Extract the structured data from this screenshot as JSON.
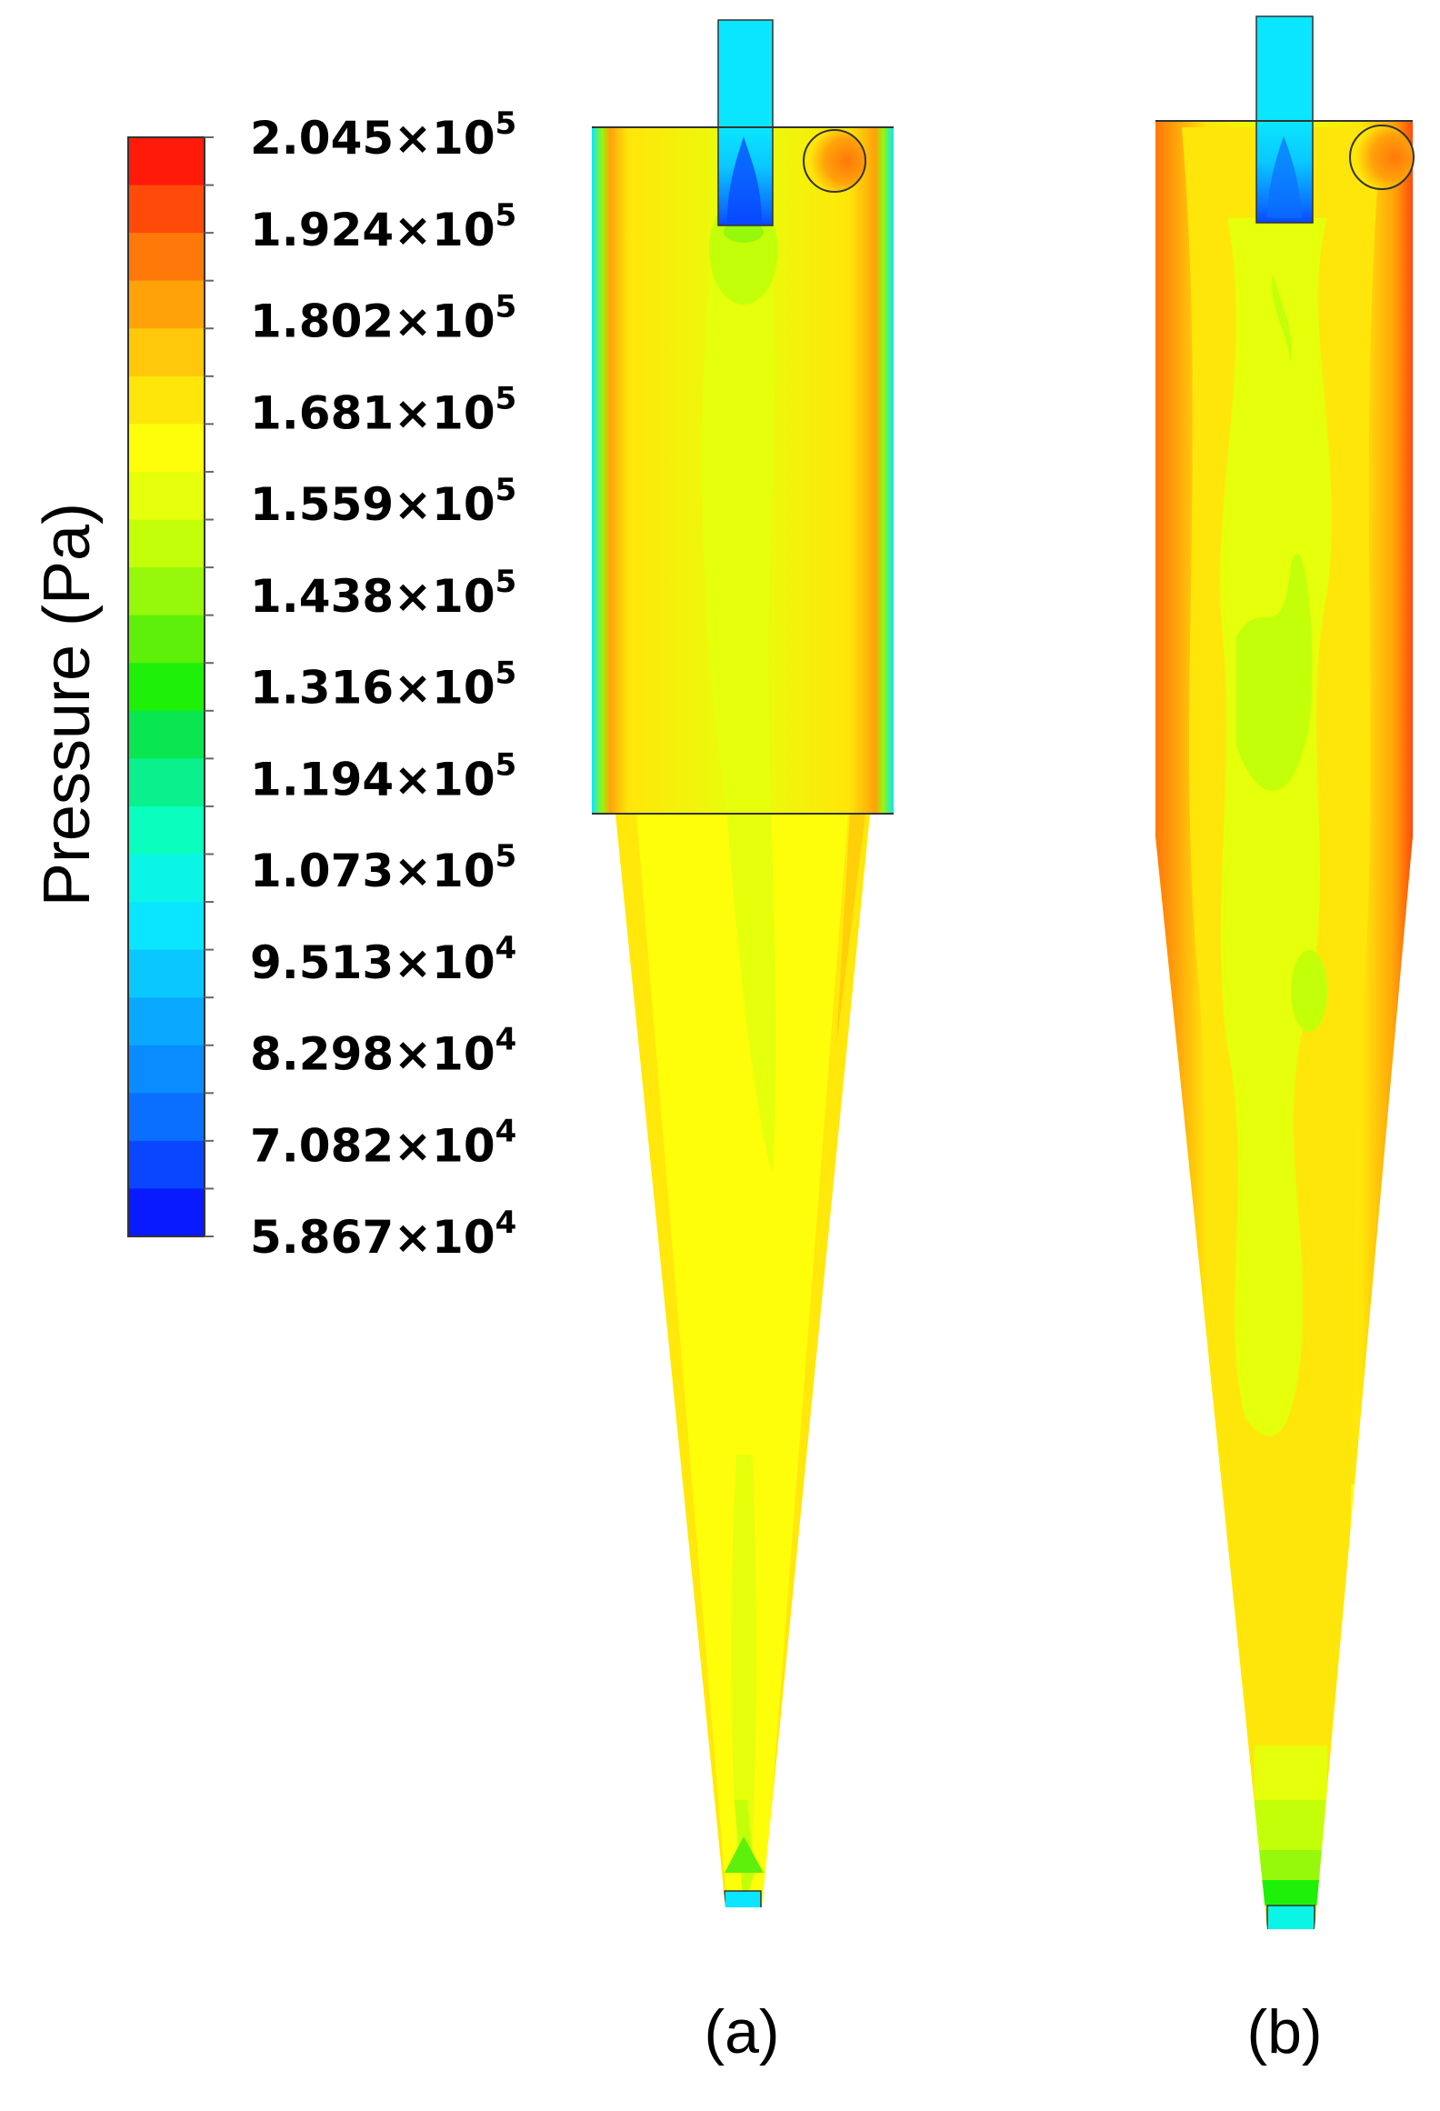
{
  "colorbar": {
    "title": "Pressure (Pa)",
    "ticks": [
      {
        "mantissa": "2.045",
        "exp": "5"
      },
      {
        "mantissa": "1.924",
        "exp": "5"
      },
      {
        "mantissa": "1.802",
        "exp": "5"
      },
      {
        "mantissa": "1.681",
        "exp": "5"
      },
      {
        "mantissa": "1.559",
        "exp": "5"
      },
      {
        "mantissa": "1.438",
        "exp": "5"
      },
      {
        "mantissa": "1.316",
        "exp": "5"
      },
      {
        "mantissa": "1.194",
        "exp": "5"
      },
      {
        "mantissa": "1.073",
        "exp": "5"
      },
      {
        "mantissa": "9.513",
        "exp": "4"
      },
      {
        "mantissa": "8.298",
        "exp": "4"
      },
      {
        "mantissa": "7.082",
        "exp": "4"
      },
      {
        "mantissa": "5.867",
        "exp": "4"
      }
    ],
    "colors": [
      "#ff1a0a",
      "#ff4a0a",
      "#ff780a",
      "#ffa20a",
      "#ffc80a",
      "#ffe60a",
      "#fffe0a",
      "#e6ff0a",
      "#c4ff0a",
      "#96f80a",
      "#5ef00a",
      "#1ef00a",
      "#0ae650",
      "#0af08c",
      "#0affbe",
      "#0af5e6",
      "#0ae6ff",
      "#0ac8ff",
      "#0aa8ff",
      "#0a8cff",
      "#0a6eff",
      "#0a46ff",
      "#0a1aff"
    ]
  },
  "panels": [
    {
      "label": "(a)"
    },
    {
      "label": "(b)"
    }
  ]
}
